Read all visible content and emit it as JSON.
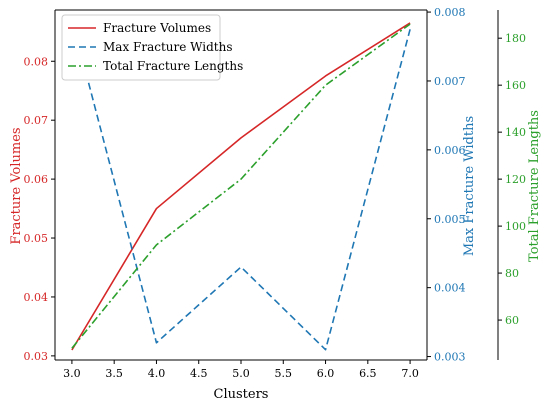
{
  "chart_data": {
    "type": "line",
    "xlabel": "Clusters",
    "x_ticks": [
      "3.0",
      "3.5",
      "4.0",
      "4.5",
      "5.0",
      "5.5",
      "6.0",
      "6.5",
      "7.0"
    ],
    "xlim": [
      2.8,
      7.2
    ],
    "axes": [
      {
        "id": "left",
        "label": "Fracture Volumes",
        "color": "#d62728",
        "ylim": [
          0.0293,
          0.0887
        ],
        "ticks": [
          "0.03",
          "0.04",
          "0.05",
          "0.06",
          "0.07",
          "0.08"
        ],
        "tick_values": [
          0.03,
          0.04,
          0.05,
          0.06,
          0.07,
          0.08
        ]
      },
      {
        "id": "right1",
        "label": "Max Fracture Widths",
        "color": "#1f77b4",
        "ylim": [
          0.00295,
          0.00803
        ],
        "ticks": [
          "0.003",
          "0.004",
          "0.005",
          "0.006",
          "0.007",
          "0.008"
        ],
        "tick_values": [
          0.003,
          0.004,
          0.005,
          0.006,
          0.007,
          0.008
        ]
      },
      {
        "id": "right2",
        "label": "Total Fracture Lengths",
        "color": "#2ca02c",
        "ylim": [
          43,
          192
        ],
        "ticks": [
          "60",
          "80",
          "100",
          "120",
          "140",
          "160",
          "180"
        ],
        "tick_values": [
          60,
          80,
          100,
          120,
          140,
          160,
          180
        ]
      }
    ],
    "series": [
      {
        "name": "Fracture Volumes",
        "axis": "left",
        "color": "#d62728",
        "dash": "solid",
        "x": [
          3,
          4,
          5,
          6,
          7
        ],
        "y": [
          0.031,
          0.055,
          0.067,
          0.0775,
          0.0865
        ]
      },
      {
        "name": "Max Fracture Widths",
        "axis": "right1",
        "color": "#1f77b4",
        "dash": "dashed",
        "x": [
          3,
          4,
          5,
          6,
          7
        ],
        "y": [
          0.0079,
          0.0032,
          0.0043,
          0.0031,
          0.00775
        ]
      },
      {
        "name": "Total Fracture Lengths",
        "axis": "right2",
        "color": "#2ca02c",
        "dash": "dashdot",
        "x": [
          3,
          4,
          5,
          6,
          7
        ],
        "y": [
          48,
          92,
          120,
          160,
          186
        ]
      }
    ],
    "legend": {
      "position": "top-left",
      "entries": [
        "Fracture Volumes",
        "Max Fracture Widths",
        "Total Fracture Lengths"
      ]
    },
    "grid": false
  }
}
